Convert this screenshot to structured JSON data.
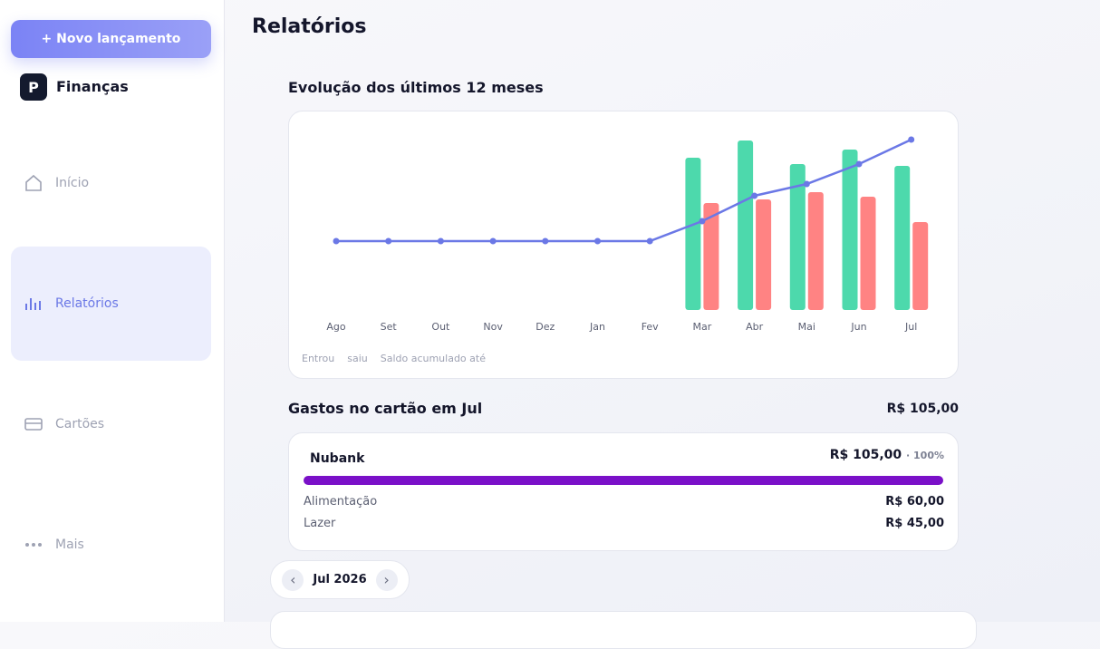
{
  "sidebar": {
    "button": "+ Novo lançamento",
    "brand": "Finanças",
    "logo": "P",
    "nav": [
      "Início",
      "Relatórios",
      "Cartões",
      "Mais"
    ]
  },
  "header": {
    "title": "Relatórios"
  },
  "chart_data": {
    "type": "bar",
    "title": "Evolução dos últimos 12 meses",
    "categories": [
      "Ago",
      "Set",
      "Out",
      "Nov",
      "Dez",
      "Jan",
      "Fev",
      "Mar",
      "Abr",
      "Mai",
      "Jun",
      "Jul"
    ],
    "series": [
      {
        "name": "Entrou",
        "color": "#4dd9ac",
        "values": [
          null,
          null,
          null,
          null,
          null,
          null,
          null,
          168,
          187,
          161,
          177,
          159
        ]
      },
      {
        "name": "saiu",
        "color": "#ff8383",
        "values": [
          null,
          null,
          null,
          null,
          null,
          null,
          null,
          118,
          122,
          130,
          125,
          97
        ]
      },
      {
        "name": "Saldo acumulado até",
        "type": "line",
        "axis": "y2",
        "color": "#6b78e6",
        "values": [
          0,
          0,
          0,
          0,
          0,
          0,
          0,
          22,
          50,
          63,
          85,
          112
        ]
      }
    ],
    "ylim": [
      0,
      211
    ],
    "y2lim": [
      -76,
      135
    ]
  },
  "card_spending": {
    "title": "Gastos no cartão em Jul",
    "total": "R$ 105,00",
    "cards": [
      {
        "name": "Nubank",
        "amount": "R$ 105,00",
        "share": "· 100%",
        "color": "#7a10c8",
        "categories": [
          {
            "label": "Alimentação",
            "amount": "R$ 60,00"
          },
          {
            "label": "Lazer",
            "amount": "R$ 45,00"
          }
        ]
      }
    ]
  },
  "month_picker": {
    "prev": "‹",
    "label": "Jul 2026",
    "next": "›"
  }
}
